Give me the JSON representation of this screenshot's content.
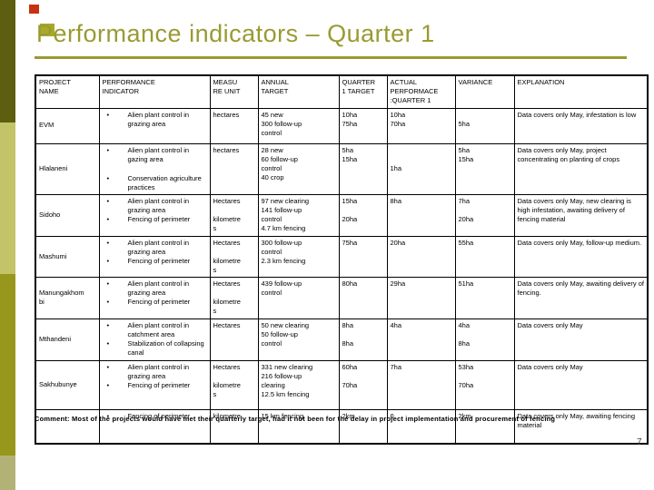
{
  "slide": {
    "title": "Performance indicators – Quarter 1",
    "page_number": "7",
    "comment": "Comment: Most of the projects would have met their quarterly target, had it not been for the delay in project implementation and procurement of fencing"
  },
  "decorations": {
    "accent_color": "#9a9a32",
    "red_square_color": "#c63310",
    "olive_square_color": "#a8a82a",
    "bar_colors": [
      "#5e5e10",
      "#c3c368",
      "#97971c",
      "#b2b276"
    ]
  },
  "table": {
    "headers": [
      "PROJECT\nNAME",
      "PERFORMANCE\nINDICATOR",
      "MEASU\nRE UNIT",
      "ANNUAL\nTARGET",
      "QUARTER\n1 TARGET",
      "ACTUAL\nPERFORMACE\n:QUARTER 1",
      "VARIANCE",
      "EXPLANATION"
    ],
    "rows": [
      {
        "name": "EVM",
        "indicators": [
          "Alien plant control in grazing area"
        ],
        "unit": "hectares",
        "annual": "45 new\n300 follow-up\ncontrol",
        "q1_target": "10ha\n75ha",
        "actual": "10ha\n70ha",
        "variance": "\n5ha",
        "explanation": "Data covers only May, infestation is low"
      },
      {
        "name": "Hlalaneni",
        "indicators": [
          "Alien plant control in gazing area",
          "Conservation agriculture practices"
        ],
        "indicator_spacing": "wide",
        "unit": "hectares",
        "annual": "28 new\n60 follow-up\ncontrol\n40 crop",
        "q1_target": "5ha\n15ha",
        "actual": "\n\n1ha",
        "variance": "5ha\n15ha",
        "explanation": "Data covers only May, project concentrating on planting of crops"
      },
      {
        "name": "Sidoho",
        "indicators": [
          "Alien plant control in grazing area",
          "Fencing of perimeter"
        ],
        "unit": "Hectares\n\nkilometre\ns",
        "annual": "97 new clearing\n141 follow-up\ncontrol\n4.7 km fencing",
        "q1_target": "15ha\n\n20ha",
        "actual": "8ha",
        "variance": "7ha\n\n20ha",
        "explanation": "Data covers only May, new clearing is high infestation, awaiting delivery of fencing material"
      },
      {
        "name": "Mashumi",
        "indicators": [
          "Alien plant control in grazing area",
          "Fencing of perimeter"
        ],
        "unit": "Hectares\n\nkilometre\ns",
        "annual": "300 follow-up\ncontrol\n2.3 km fencing",
        "q1_target": "75ha",
        "actual": "20ha",
        "variance": "55ha",
        "explanation": "Data covers only May, follow-up medium."
      },
      {
        "name": "Manungakhom\nbi",
        "indicators": [
          "Alien plant control in grazing area",
          "Fencing of perimeter"
        ],
        "unit": "Hectares\n\nkilometre\ns",
        "annual": "439 follow-up\ncontrol",
        "q1_target": "80ha",
        "actual": "29ha",
        "variance": "51ha",
        "explanation": "Data covers only May, awaiting delivery of fencing."
      },
      {
        "name": "Mthandeni",
        "indicators": [
          "Alien plant control in catchment area",
          "Stabilization of collapsing canal"
        ],
        "unit": "Hectares",
        "annual": "50 new clearing\n50 follow-up\ncontrol",
        "q1_target": "8ha\n\n8ha",
        "actual": "4ha",
        "variance": "4ha\n\n8ha",
        "explanation": "Data covers only May"
      },
      {
        "name": "Sakhubunye",
        "indicators": [
          "Alien plant control in grazing area",
          "Fencing of perimeter"
        ],
        "unit": "Hectares\n\nkilometre\ns",
        "annual": "331 new clearing\n216 follow-up\nclearing\n12.5 km fencing",
        "q1_target": "60ha\n\n70ha",
        "actual": "7ha",
        "variance": "53ha\n\n70ha",
        "explanation": "Data covers only May"
      },
      {
        "name": "",
        "indicators": [
          "Fencing of perimeter"
        ],
        "unit": "kilometre",
        "annual": "15 km fencing",
        "q1_target": "2km",
        "actual": "0",
        "variance": "2km",
        "explanation": "Data covers only May, awaiting fencing material"
      }
    ]
  }
}
